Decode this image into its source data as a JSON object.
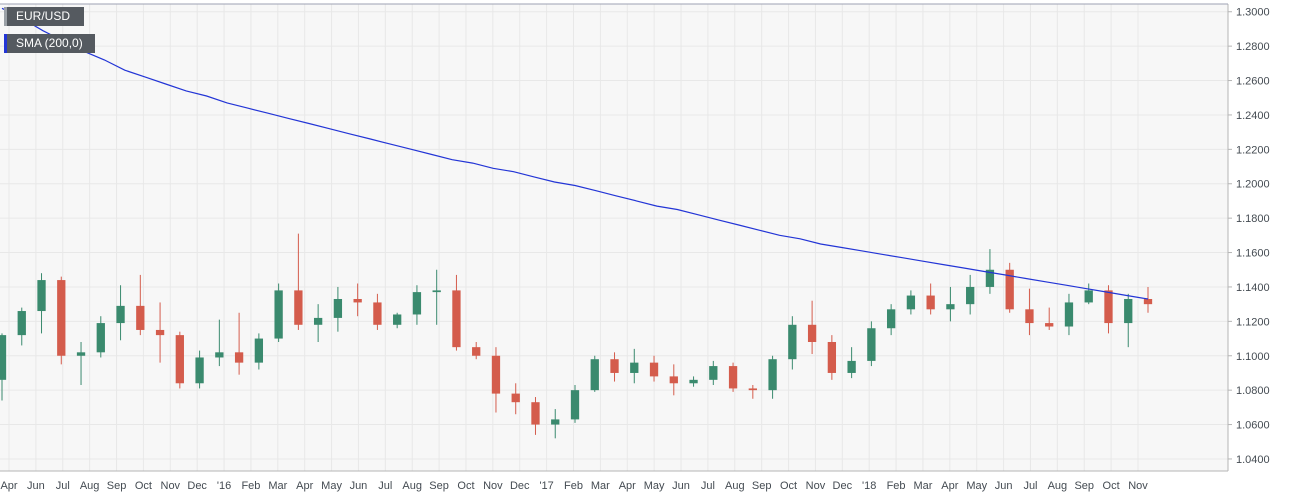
{
  "legend": {
    "main_label": "EUR/USD",
    "sma_label": "SMA (200,0)"
  },
  "colors": {
    "up": "#3a8a6e",
    "down": "#d45c4c",
    "sma": "#2335d6",
    "grid": "#e8e8e8",
    "background": "#f7f7f7"
  },
  "chart_data": {
    "type": "candlestick",
    "ylim": [
      1.033,
      1.3045
    ],
    "y_ticks": [
      "1.3000",
      "1.2800",
      "1.2600",
      "1.2400",
      "1.2200",
      "1.2000",
      "1.1800",
      "1.1600",
      "1.1400",
      "1.1200",
      "1.1000",
      "1.0800",
      "1.0600",
      "1.0400"
    ],
    "x_ticks": [
      "Apr",
      "Jun",
      "Jul",
      "Aug",
      "Sep",
      "Oct",
      "Nov",
      "Dec",
      "'16",
      "Feb",
      "Mar",
      "Apr",
      "May",
      "Jun",
      "Jul",
      "Aug",
      "Sep",
      "Oct",
      "Nov",
      "Dec",
      "'17",
      "Feb",
      "Mar",
      "Apr",
      "May",
      "Jun",
      "Jul",
      "Aug",
      "Sep",
      "Oct",
      "Nov",
      "Dec",
      "'18",
      "Feb",
      "Mar",
      "Apr",
      "May",
      "Jun",
      "Jul",
      "Aug",
      "Sep",
      "Oct",
      "Nov"
    ],
    "grid": true,
    "sma_period": 200,
    "sma": [
      1.302,
      1.296,
      1.289,
      1.283,
      1.277,
      1.272,
      1.266,
      1.262,
      1.258,
      1.254,
      1.251,
      1.247,
      1.244,
      1.241,
      1.238,
      1.235,
      1.232,
      1.229,
      1.226,
      1.223,
      1.22,
      1.217,
      1.214,
      1.212,
      1.209,
      1.207,
      1.204,
      1.201,
      1.199,
      1.196,
      1.193,
      1.19,
      1.187,
      1.185,
      1.182,
      1.179,
      1.176,
      1.173,
      1.17,
      1.168,
      1.165,
      1.163,
      1.161,
      1.159,
      1.157,
      1.155,
      1.153,
      1.151,
      1.149,
      1.147,
      1.145,
      1.143,
      1.141,
      1.139,
      1.137,
      1.135,
      1.133
    ],
    "candles": [
      [
        1.086,
        1.113,
        1.074,
        1.112
      ],
      [
        1.112,
        1.128,
        1.106,
        1.126
      ],
      [
        1.126,
        1.148,
        1.113,
        1.144
      ],
      [
        1.144,
        1.146,
        1.095,
        1.1
      ],
      [
        1.1,
        1.108,
        1.083,
        1.102
      ],
      [
        1.102,
        1.123,
        1.099,
        1.119
      ],
      [
        1.119,
        1.141,
        1.109,
        1.129
      ],
      [
        1.129,
        1.147,
        1.112,
        1.115
      ],
      [
        1.115,
        1.131,
        1.096,
        1.112
      ],
      [
        1.112,
        1.114,
        1.081,
        1.084
      ],
      [
        1.084,
        1.103,
        1.081,
        1.099
      ],
      [
        1.099,
        1.121,
        1.094,
        1.102
      ],
      [
        1.102,
        1.125,
        1.089,
        1.096
      ],
      [
        1.096,
        1.113,
        1.092,
        1.11
      ],
      [
        1.11,
        1.142,
        1.108,
        1.138
      ],
      [
        1.138,
        1.171,
        1.115,
        1.118
      ],
      [
        1.118,
        1.13,
        1.108,
        1.122
      ],
      [
        1.122,
        1.14,
        1.114,
        1.133
      ],
      [
        1.133,
        1.142,
        1.123,
        1.131
      ],
      [
        1.131,
        1.136,
        1.115,
        1.118
      ],
      [
        1.118,
        1.125,
        1.116,
        1.124
      ],
      [
        1.124,
        1.141,
        1.118,
        1.137
      ],
      [
        1.137,
        1.15,
        1.118,
        1.138
      ],
      [
        1.138,
        1.147,
        1.103,
        1.105
      ],
      [
        1.105,
        1.108,
        1.098,
        1.1
      ],
      [
        1.1,
        1.105,
        1.067,
        1.078
      ],
      [
        1.078,
        1.084,
        1.066,
        1.073
      ],
      [
        1.073,
        1.076,
        1.054,
        1.06
      ],
      [
        1.06,
        1.069,
        1.052,
        1.063
      ],
      [
        1.063,
        1.083,
        1.061,
        1.08
      ],
      [
        1.08,
        1.1,
        1.079,
        1.098
      ],
      [
        1.098,
        1.102,
        1.085,
        1.09
      ],
      [
        1.09,
        1.104,
        1.084,
        1.096
      ],
      [
        1.096,
        1.1,
        1.085,
        1.088
      ],
      [
        1.088,
        1.095,
        1.077,
        1.084
      ],
      [
        1.084,
        1.088,
        1.082,
        1.086
      ],
      [
        1.086,
        1.097,
        1.083,
        1.094
      ],
      [
        1.094,
        1.096,
        1.079,
        1.081
      ],
      [
        1.081,
        1.083,
        1.075,
        1.08
      ],
      [
        1.08,
        1.1,
        1.075,
        1.098
      ],
      [
        1.098,
        1.123,
        1.092,
        1.118
      ],
      [
        1.118,
        1.132,
        1.101,
        1.108
      ],
      [
        1.108,
        1.112,
        1.086,
        1.09
      ],
      [
        1.09,
        1.105,
        1.087,
        1.097
      ],
      [
        1.097,
        1.12,
        1.094,
        1.116
      ],
      [
        1.116,
        1.13,
        1.112,
        1.127
      ],
      [
        1.127,
        1.138,
        1.124,
        1.135
      ],
      [
        1.135,
        1.142,
        1.124,
        1.127
      ],
      [
        1.127,
        1.14,
        1.12,
        1.13
      ],
      [
        1.13,
        1.147,
        1.124,
        1.14
      ],
      [
        1.14,
        1.162,
        1.136,
        1.15
      ],
      [
        1.15,
        1.154,
        1.125,
        1.127
      ],
      [
        1.127,
        1.139,
        1.112,
        1.119
      ],
      [
        1.119,
        1.128,
        1.115,
        1.117
      ],
      [
        1.117,
        1.136,
        1.112,
        1.131
      ],
      [
        1.131,
        1.142,
        1.13,
        1.138
      ],
      [
        1.138,
        1.141,
        1.113,
        1.119
      ],
      [
        1.119,
        1.136,
        1.105,
        1.133
      ],
      [
        1.133,
        1.14,
        1.125,
        1.13
      ]
    ]
  }
}
